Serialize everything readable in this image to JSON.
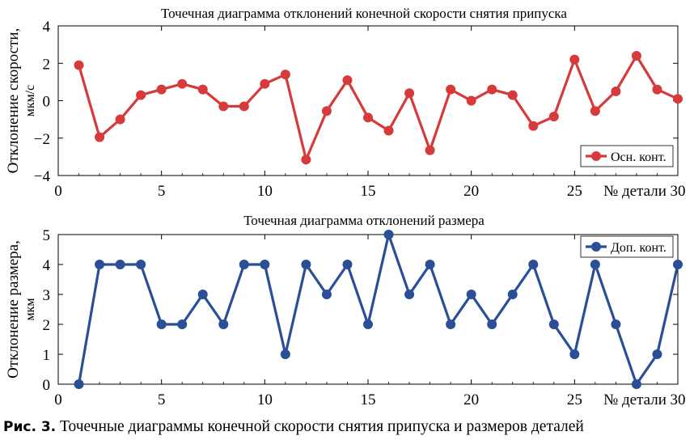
{
  "chart_data": [
    {
      "type": "line",
      "title": "Точечная диаграмма отклонений конечной скорости снятия припуска",
      "xlabel": "№ детали",
      "ylabel": [
        "Отклонение скорости,",
        "мкм/с"
      ],
      "xlim": [
        0,
        30
      ],
      "ylim": [
        -4,
        4
      ],
      "xticks": [
        0,
        5,
        10,
        15,
        20,
        25,
        30
      ],
      "yticks": [
        -4,
        -2,
        0,
        2,
        4
      ],
      "ytick_labels": [
        "−4",
        "−2",
        "0",
        "2",
        "4"
      ],
      "grid": false,
      "legend": "bottom-right",
      "series": [
        {
          "name": "Осн. конт.",
          "color": "#d63a3a",
          "x": [
            1,
            2,
            3,
            4,
            5,
            6,
            7,
            8,
            9,
            10,
            11,
            12,
            13,
            14,
            15,
            16,
            17,
            18,
            19,
            20,
            21,
            22,
            23,
            24,
            25,
            26,
            27,
            28,
            29,
            30
          ],
          "values": [
            1.9,
            -1.95,
            -1.0,
            0.3,
            0.6,
            0.9,
            0.6,
            -0.3,
            -0.3,
            0.9,
            1.4,
            -3.15,
            -0.55,
            1.1,
            -0.9,
            -1.6,
            0.4,
            -2.65,
            0.6,
            0.0,
            0.6,
            0.3,
            -1.35,
            -0.85,
            2.2,
            -0.55,
            0.5,
            2.4,
            0.6,
            0.1
          ]
        }
      ]
    },
    {
      "type": "line",
      "title": "Точечная диаграмма отклонений размера",
      "xlabel": "№ детали",
      "ylabel": [
        "Отклонение размера,",
        "мкм"
      ],
      "xlim": [
        0,
        30
      ],
      "ylim": [
        0,
        5
      ],
      "xticks": [
        0,
        5,
        10,
        15,
        20,
        25,
        30
      ],
      "yticks": [
        0,
        1,
        2,
        3,
        4,
        5
      ],
      "ytick_labels": [
        "0",
        "1",
        "2",
        "3",
        "4",
        "5"
      ],
      "grid": false,
      "legend": "top-right",
      "series": [
        {
          "name": "Доп. конт.",
          "color": "#2b4f96",
          "x": [
            1,
            2,
            3,
            4,
            5,
            6,
            7,
            8,
            9,
            10,
            11,
            12,
            13,
            14,
            15,
            16,
            17,
            18,
            19,
            20,
            21,
            22,
            23,
            24,
            25,
            26,
            27,
            28,
            29,
            30
          ],
          "values": [
            0,
            4,
            4,
            4,
            2,
            2,
            3,
            2,
            4,
            4,
            1,
            4,
            3,
            4,
            2,
            5,
            3,
            4,
            2,
            3,
            2,
            3,
            4,
            2,
            1,
            4,
            2,
            0,
            1,
            4
          ]
        }
      ]
    }
  ],
  "caption": {
    "label": "Рис. 3.",
    "text": " Точечные диаграммы конечной скорости снятия припуска и размеров деталей"
  }
}
